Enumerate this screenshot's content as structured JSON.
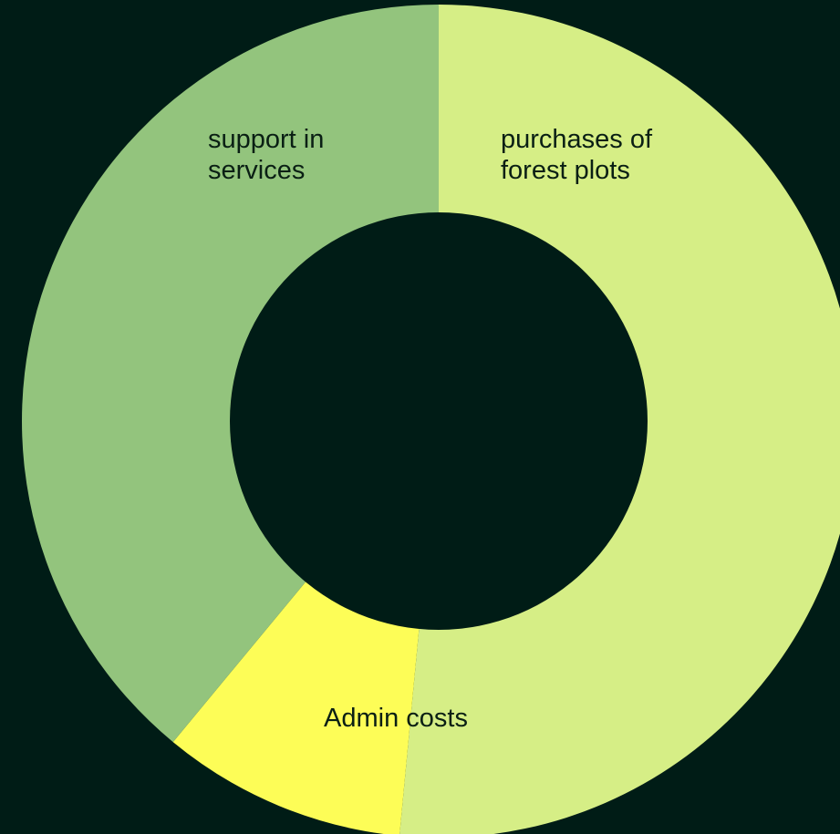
{
  "colors": {
    "background": "#001c16"
  },
  "chart_data": {
    "type": "pie",
    "variant": "donut",
    "categories": [
      "purchases of forest plots",
      "Admin costs",
      "support in services"
    ],
    "values": [
      51.5,
      9.5,
      39.0
    ],
    "value_unit": "percent (estimated)",
    "slice_colors": [
      "#d6ee86",
      "#fdfd57",
      "#93c47d"
    ],
    "labels": [
      {
        "lines": [
          "purchases of",
          "forest plots"
        ]
      },
      {
        "lines": [
          "Admin costs"
        ]
      },
      {
        "lines": [
          "support in",
          "services"
        ]
      }
    ],
    "start_angle": "top (12 o'clock)",
    "direction": "clockwise",
    "legend": "none (labels on slices)",
    "title": ""
  }
}
